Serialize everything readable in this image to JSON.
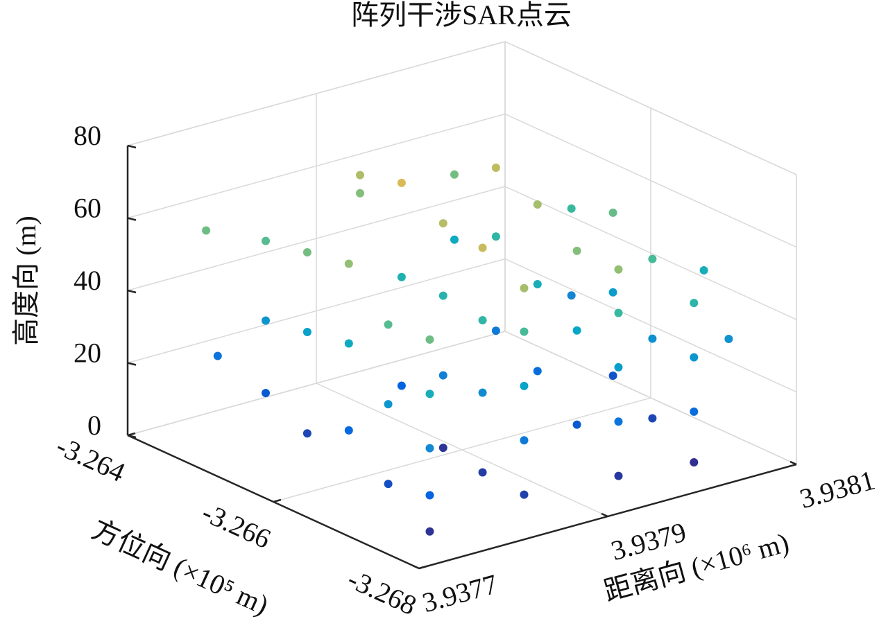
{
  "chart_data": {
    "type": "scatter3d",
    "title": "阵列干涉SAR点云",
    "xlabel": "方位向 (×10⁵ m)",
    "ylabel": "距离向 (×10⁶ m)",
    "zlabel": "高度向 (m)",
    "xlim": [
      -3.268,
      -3.264
    ],
    "xticks": [
      -3.264,
      -3.266,
      -3.268
    ],
    "ylim": [
      3.9377,
      3.9381
    ],
    "yticks": [
      3.9377,
      3.9379,
      3.9381
    ],
    "zlim": [
      0,
      80
    ],
    "zticks": [
      0,
      20,
      40,
      60,
      80
    ],
    "grid": true,
    "colormap": "parula",
    "x": [
      -3.2675,
      -3.2675,
      -3.2675,
      -3.2675,
      -3.2675,
      -3.2675,
      -3.2675,
      -3.2675,
      -3.2675,
      -3.2675,
      -3.2675,
      -3.2675,
      -3.2675,
      -3.2675,
      -3.2675,
      -3.2675,
      -3.2675,
      -3.2675,
      -3.2675,
      -3.2668,
      -3.2668,
      -3.2668,
      -3.2668,
      -3.2668,
      -3.2668,
      -3.2668,
      -3.2668,
      -3.2668,
      -3.2668,
      -3.2668,
      -3.2668,
      -3.2668,
      -3.266,
      -3.266,
      -3.266,
      -3.266,
      -3.266,
      -3.266,
      -3.266,
      -3.266,
      -3.266,
      -3.266,
      -3.266,
      -3.266,
      -3.266,
      -3.2653,
      -3.2653,
      -3.2653,
      -3.2653,
      -3.2653,
      -3.2653,
      -3.2653,
      -3.2653,
      -3.2653,
      -3.2653,
      -3.2653,
      -3.2646,
      -3.2646,
      -3.2646,
      -3.2646,
      -3.2646,
      -3.2646,
      -3.2646,
      -3.2643,
      -3.2642,
      -3.2672,
      -3.2666
    ],
    "y": [
      3.93775,
      3.93775,
      3.93775,
      3.93775,
      3.93775,
      3.93785,
      3.93785,
      3.93785,
      3.93785,
      3.93785,
      3.93795,
      3.93795,
      3.93795,
      3.93795,
      3.93795,
      3.93803,
      3.93803,
      3.93803,
      3.93803,
      3.93776,
      3.93776,
      3.93776,
      3.93786,
      3.93786,
      3.93786,
      3.93786,
      3.93796,
      3.93796,
      3.93796,
      3.93804,
      3.93804,
      3.93804,
      3.93778,
      3.93778,
      3.93778,
      3.93788,
      3.93788,
      3.93788,
      3.93788,
      3.93798,
      3.93798,
      3.93798,
      3.93806,
      3.93806,
      3.93806,
      3.93779,
      3.93779,
      3.93779,
      3.93789,
      3.93789,
      3.93789,
      3.93799,
      3.93799,
      3.93799,
      3.93807,
      3.93807,
      3.9378,
      3.9378,
      3.9378,
      3.9379,
      3.9379,
      3.938,
      3.938,
      3.93776,
      3.93778,
      3.93809,
      3.93811
    ],
    "z": [
      2,
      12,
      25,
      40,
      55,
      5,
      20,
      35,
      50,
      62,
      3,
      18,
      33,
      48,
      60,
      1,
      15,
      30,
      45,
      8,
      30,
      52,
      4,
      26,
      46,
      66,
      10,
      36,
      58,
      6,
      28,
      50,
      14,
      38,
      60,
      2,
      22,
      44,
      64,
      16,
      40,
      62,
      9,
      32,
      54,
      6,
      34,
      56,
      12,
      42,
      68,
      20,
      46,
      65,
      24,
      48,
      10,
      30,
      52,
      58,
      63,
      38,
      56,
      55,
      18,
      28,
      40
    ]
  }
}
